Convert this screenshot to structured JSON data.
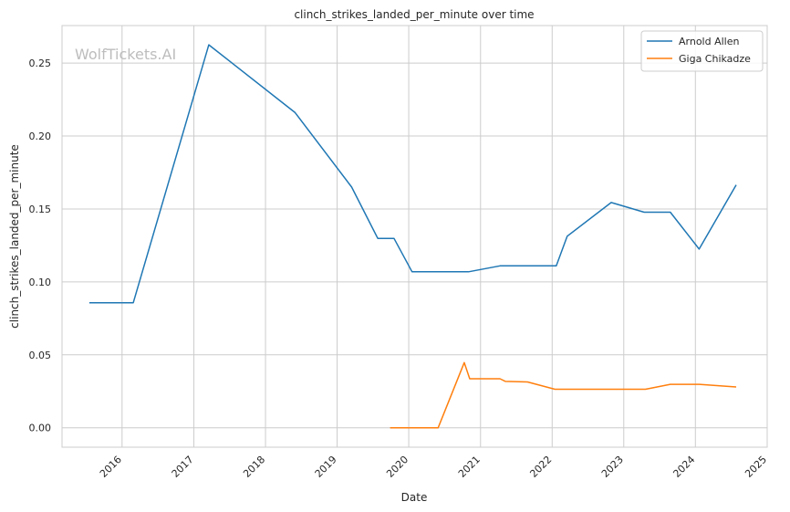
{
  "watermark": "WolfTickets.AI",
  "chart_data": {
    "type": "line",
    "title": "clinch_strikes_landed_per_minute over time",
    "xlabel": "Date",
    "ylabel": "clinch_strikes_landed_per_minute",
    "x_axis_type": "date",
    "xlim": [
      "2015-03-01",
      "2025-01-01"
    ],
    "ylim": [
      -0.0133,
      0.2757
    ],
    "x_ticks": [
      "2016",
      "2017",
      "2018",
      "2019",
      "2020",
      "2021",
      "2022",
      "2023",
      "2024",
      "2025"
    ],
    "y_ticks": [
      "0.00",
      "0.05",
      "0.10",
      "0.15",
      "0.20",
      "0.25"
    ],
    "grid": true,
    "legend_position": "top-right",
    "series": [
      {
        "name": "Arnold Allen",
        "color": "#1f77b4",
        "points": [
          {
            "x": "2015-07-18",
            "y": 0.0857
          },
          {
            "x": "2016-02-27",
            "y": 0.0857
          },
          {
            "x": "2017-03-18",
            "y": 0.2625
          },
          {
            "x": "2018-06-01",
            "y": 0.216
          },
          {
            "x": "2019-03-16",
            "y": 0.165
          },
          {
            "x": "2019-07-27",
            "y": 0.1298
          },
          {
            "x": "2019-10-18",
            "y": 0.1298
          },
          {
            "x": "2020-01-18",
            "y": 0.1069
          },
          {
            "x": "2020-11-01",
            "y": 0.1069
          },
          {
            "x": "2021-04-10",
            "y": 0.111
          },
          {
            "x": "2022-01-22",
            "y": 0.111
          },
          {
            "x": "2022-03-19",
            "y": 0.1313
          },
          {
            "x": "2022-10-29",
            "y": 0.1544
          },
          {
            "x": "2023-04-15",
            "y": 0.1478
          },
          {
            "x": "2023-08-26",
            "y": 0.1478
          },
          {
            "x": "2024-01-20",
            "y": 0.1225
          },
          {
            "x": "2024-07-27",
            "y": 0.1665
          }
        ]
      },
      {
        "name": "Giga Chikadze",
        "color": "#ff7f0e",
        "points": [
          {
            "x": "2019-09-28",
            "y": 0.0
          },
          {
            "x": "2020-05-30",
            "y": 0.0
          },
          {
            "x": "2020-10-10",
            "y": 0.0447
          },
          {
            "x": "2020-11-07",
            "y": 0.0336
          },
          {
            "x": "2021-04-10",
            "y": 0.0336
          },
          {
            "x": "2021-05-08",
            "y": 0.0318
          },
          {
            "x": "2021-08-28",
            "y": 0.0314
          },
          {
            "x": "2022-01-15",
            "y": 0.0264
          },
          {
            "x": "2023-04-22",
            "y": 0.0264
          },
          {
            "x": "2023-08-26",
            "y": 0.0298
          },
          {
            "x": "2024-01-20",
            "y": 0.0298
          },
          {
            "x": "2024-07-27",
            "y": 0.028
          }
        ]
      }
    ]
  }
}
